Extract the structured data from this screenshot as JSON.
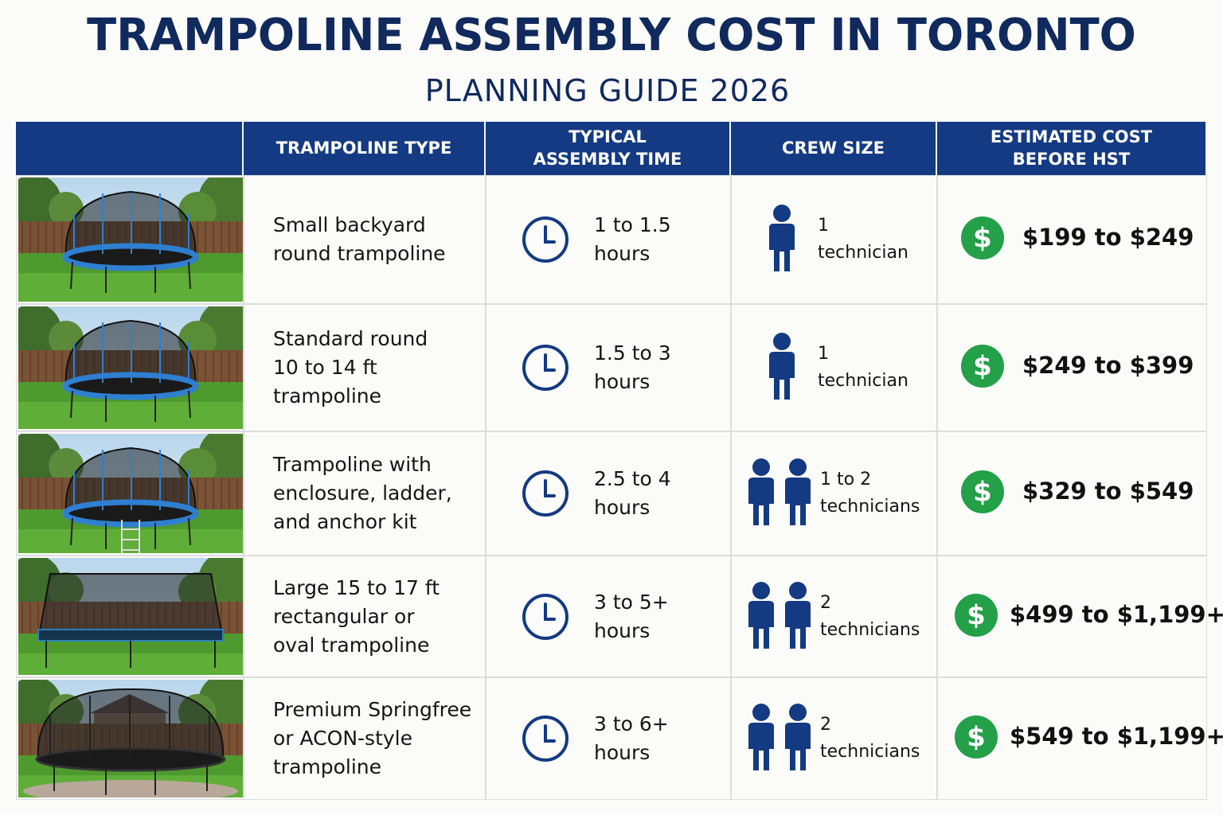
{
  "header": {
    "title": "TRAMPOLINE ASSEMBLY COST IN TORONTO",
    "subtitle": "PLANNING GUIDE 2026"
  },
  "table": {
    "columns": [
      "TRAMPOLINE TYPE",
      "TYPICAL ASSEMBLY TIME",
      "CREW SIZE",
      "ESTIMATED COST BEFORE HST"
    ],
    "rows": [
      {
        "type": [
          "Small backyard",
          "round trampoline"
        ],
        "time": [
          "1 to 1.5",
          "hours"
        ],
        "crew": [
          "1",
          "technician"
        ],
        "cost": "$199 to $249"
      },
      {
        "type": [
          "Standard round",
          "10 to 14 ft",
          "trampoline"
        ],
        "time": [
          "1.5 to 3",
          "hours"
        ],
        "crew": [
          "1",
          "technician"
        ],
        "cost": "$249 to $399"
      },
      {
        "type": [
          "Trampoline with",
          "enclosure, ladder,",
          "and anchor kit"
        ],
        "time": [
          "2.5 to 4",
          "hours"
        ],
        "crew": [
          "1 to 2",
          "technicians"
        ],
        "cost": "$329 to $549"
      },
      {
        "type": [
          "Large 15 to 17 ft",
          "rectangular or",
          "oval trampoline"
        ],
        "time": [
          "3 to 5+",
          "hours"
        ],
        "crew": [
          "2",
          "technicians"
        ],
        "cost": "$499 to $1,199+"
      },
      {
        "type": [
          "Premium Springfree",
          "or ACON-style",
          "trampoline"
        ],
        "time": [
          "3 to 6+",
          "hours"
        ],
        "crew": [
          "2",
          "technicians"
        ],
        "cost": "$549 to $1,199+"
      }
    ]
  }
}
